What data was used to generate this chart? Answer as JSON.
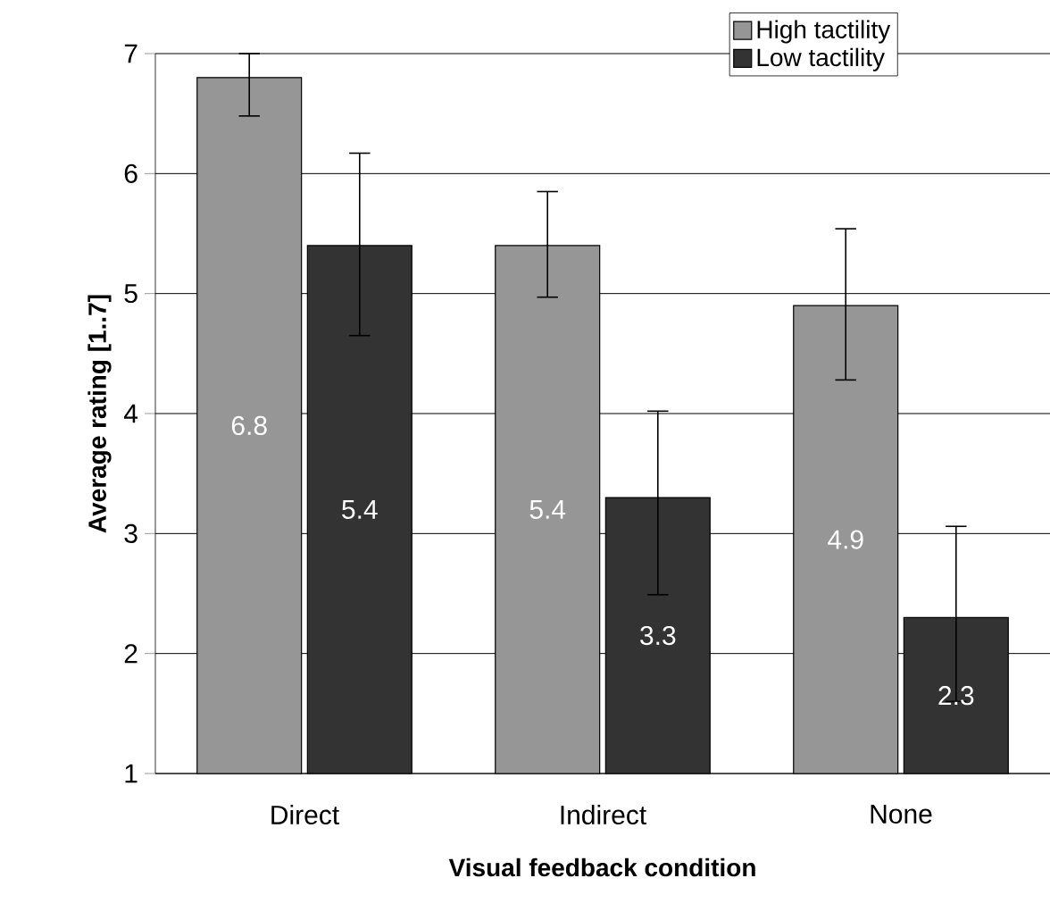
{
  "chart_data": {
    "type": "bar",
    "xlabel": "Visual feedback condition",
    "ylabel": "Average rating [1..7]",
    "categories": [
      "Direct",
      "Indirect",
      "None"
    ],
    "series": [
      {
        "name": "High tactility",
        "color": "#969696",
        "values": [
          6.8,
          5.4,
          4.9
        ],
        "errors": [
          [
            6.48,
            7.0
          ],
          [
            4.97,
            5.85
          ],
          [
            4.28,
            5.54
          ]
        ]
      },
      {
        "name": "Low tactility",
        "color": "#333333",
        "values": [
          5.4,
          3.3,
          2.3
        ],
        "errors": [
          [
            4.65,
            6.17
          ],
          [
            2.49,
            4.02
          ],
          [
            1.6,
            3.06
          ]
        ]
      }
    ],
    "ylim": [
      1,
      7
    ],
    "yticks": [
      1,
      2,
      3,
      4,
      5,
      6,
      7
    ],
    "grid": "y",
    "legend": "top right",
    "data_labels": true
  }
}
